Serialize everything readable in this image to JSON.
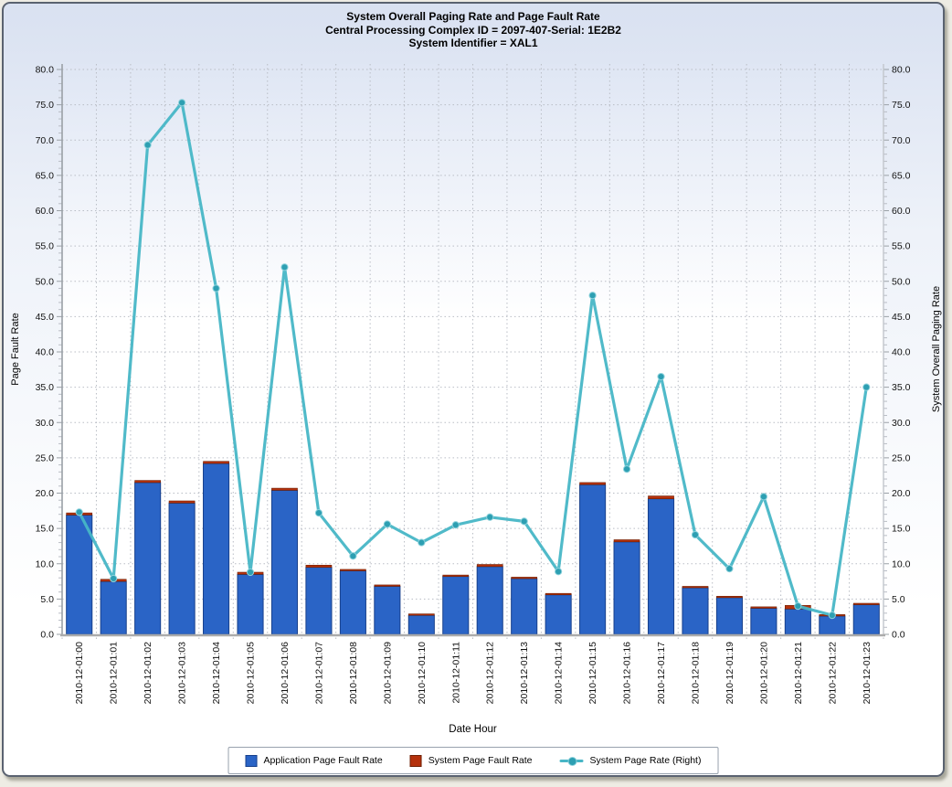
{
  "chart": {
    "titles": [
      "System Overall Paging Rate and Page Fault Rate",
      "Central Processing Complex ID = 2097-407-Serial: 1E2B2",
      "System Identifier = XAL1"
    ]
  },
  "legend": {
    "items": [
      {
        "label": "Application Page Fault Rate",
        "marker": "square"
      },
      {
        "label": "System Page Fault Rate",
        "marker": "square"
      },
      {
        "label": "System Page Rate (Right)",
        "marker": "line-diamond"
      }
    ]
  },
  "colors": {
    "bar_application": "#2a64c6",
    "bar_application_border": "#17408c",
    "bar_system": "#b5310c",
    "bar_system_border": "#6e2005",
    "line_system_page_rate": "#47b6c6",
    "line_marker_fill": "#2d9fb2",
    "line_marker_rim": "#8ed2dc",
    "grid": "#b9bdc5",
    "axis_left": "#9aa0a6",
    "axis_bottom": "#ababab",
    "axis_right": "#c2c6cc",
    "tick_text": "#111111",
    "plot_bg_top": "#dfe6f4",
    "plot_bg_bottom": "#ffffff"
  },
  "chart_data": {
    "type": "bar",
    "subtype": "stacked-bars-with-line-overlay",
    "title": "System Overall Paging Rate and Page Fault Rate",
    "subtitle": "Central Processing Complex ID = 2097-407-Serial: 1E2B2 / System Identifier = XAL1",
    "xlabel": "Date Hour",
    "ylabel_left": "Page Fault Rate",
    "ylabel_right": "System Overall Paging Rate",
    "ylim_left": [
      0,
      80
    ],
    "ylim_right": [
      0,
      80
    ],
    "ytick_step": 5,
    "ytick_minor_step": 1,
    "ytick_format": "one-decimal",
    "grid": true,
    "legend_position": "bottom",
    "categories": [
      "2010-12-01:00",
      "2010-12-01:01",
      "2010-12-01:02",
      "2010-12-01:03",
      "2010-12-01:04",
      "2010-12-01:05",
      "2010-12-01:06",
      "2010-12-01:07",
      "2010-12-01:08",
      "2010-12-01:09",
      "2010-12-01:10",
      "2010-12-01:11",
      "2010-12-01:12",
      "2010-12-01:13",
      "2010-12-01:14",
      "2010-12-01:15",
      "2010-12-01:16",
      "2010-12-01:17",
      "2010-12-01:18",
      "2010-12-01:19",
      "2010-12-01:20",
      "2010-12-01:21",
      "2010-12-01:22",
      "2010-12-01:23"
    ],
    "series": [
      {
        "name": "Application Page Fault Rate",
        "type": "bar",
        "stack": "page-faults",
        "axis": "left",
        "values": [
          16.9,
          7.5,
          21.5,
          18.6,
          24.2,
          8.5,
          20.4,
          9.5,
          9.0,
          6.8,
          2.7,
          8.2,
          9.6,
          7.9,
          5.6,
          21.2,
          13.1,
          19.2,
          6.6,
          5.2,
          3.7,
          3.6,
          2.6,
          4.2
        ]
      },
      {
        "name": "System Page Fault Rate",
        "type": "bar",
        "stack": "page-faults",
        "axis": "left",
        "values": [
          0.3,
          0.3,
          0.3,
          0.3,
          0.3,
          0.3,
          0.3,
          0.3,
          0.2,
          0.2,
          0.2,
          0.2,
          0.3,
          0.2,
          0.2,
          0.3,
          0.3,
          0.4,
          0.2,
          0.2,
          0.2,
          0.5,
          0.2,
          0.2
        ]
      },
      {
        "name": "System Page Rate (Right)",
        "type": "line",
        "axis": "right",
        "values": [
          17.3,
          7.9,
          69.3,
          75.3,
          49.0,
          8.8,
          52.0,
          17.2,
          11.1,
          15.6,
          13.0,
          15.5,
          16.6,
          16.0,
          8.9,
          48.0,
          23.4,
          36.5,
          14.1,
          9.3,
          19.5,
          4.0,
          2.7,
          35.0
        ]
      }
    ]
  }
}
